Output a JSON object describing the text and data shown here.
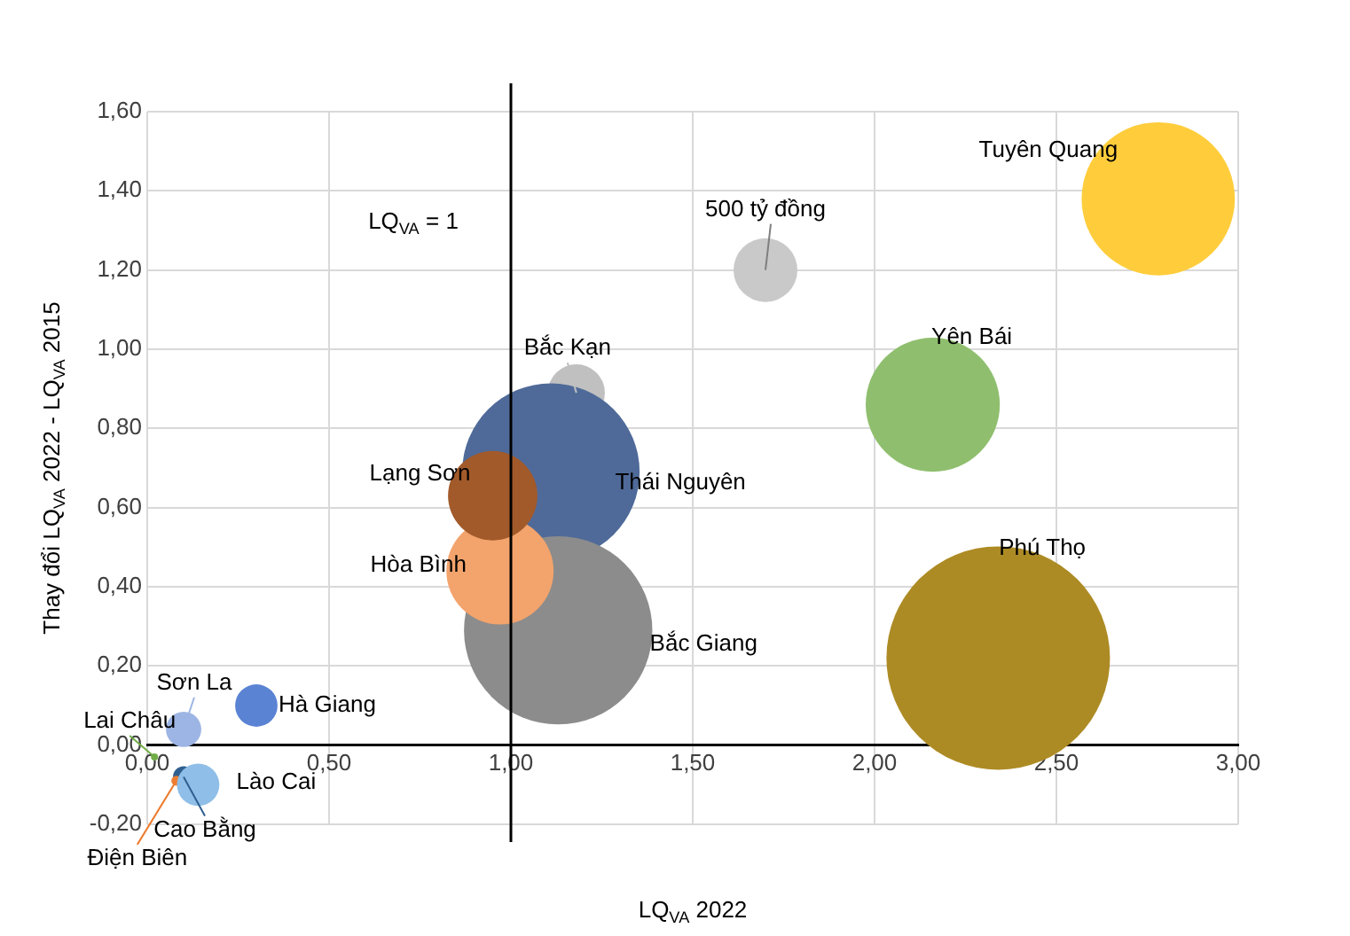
{
  "chart_data": {
    "type": "bubble",
    "xlabel": "LQ$_{VA}$ 2022",
    "ylabel": "Thay đổi LQ$_{VA}$ 2022 - LQ$_{VA}$ 2015",
    "xlim": [
      0,
      3
    ],
    "xticks": [
      {
        "value": 0,
        "label": "0,00"
      },
      {
        "value": 0.5,
        "label": "0,50"
      },
      {
        "value": 1,
        "label": "1,00"
      },
      {
        "value": 1.5,
        "label": "1,50"
      },
      {
        "value": 2,
        "label": "2,00"
      },
      {
        "value": 2.5,
        "label": "2,50"
      },
      {
        "value": 3,
        "label": "3,00"
      }
    ],
    "ylim": [
      -0.2,
      1.6
    ],
    "yticks": [
      {
        "value": -0.2,
        "label": "-0,20"
      },
      {
        "value": 0,
        "label": "0,00"
      },
      {
        "value": 0.2,
        "label": "0,20"
      },
      {
        "value": 0.4,
        "label": "0,40"
      },
      {
        "value": 0.6,
        "label": "0,60"
      },
      {
        "value": 0.8,
        "label": "0,80"
      },
      {
        "value": 1,
        "label": "1,00"
      },
      {
        "value": 1.2,
        "label": "1,20"
      },
      {
        "value": 1.4,
        "label": "1,40"
      },
      {
        "value": 1.6,
        "label": "1,60"
      }
    ],
    "grid": true,
    "legend": false,
    "ref_lines": [
      {
        "axis": "x",
        "value": 1,
        "label": "LQ$_{VA}$ = 1",
        "color": "#000000"
      }
    ],
    "annotations": [
      {
        "text": "500 tỷ đồng",
        "x": 1.7,
        "y": 1.2
      }
    ],
    "series": [
      {
        "name": "Tuyên Quang",
        "color": "#ffcd3c",
        "x": [
          2.78
        ],
        "values": [
          1.38
        ],
        "sizes": [
          0.47
        ]
      },
      {
        "name": "Yên Bái",
        "color": "#8fbf6e",
        "x": [
          2.16
        ],
        "values": [
          0.86
        ],
        "sizes": [
          0.36
        ]
      },
      {
        "name": "Bắc Kạn",
        "color": "#c0c0c0",
        "x": [
          1.18
        ],
        "values": [
          0.89
        ],
        "sizes": [
          0.065
        ]
      },
      {
        "name": "Thái Nguyên",
        "color": "#4f6a99",
        "x": [
          1.11
        ],
        "values": [
          0.69
        ],
        "sizes": [
          0.63
        ]
      },
      {
        "name": "Bắc Giang",
        "color": "#8c8c8c",
        "x": [
          1.13
        ],
        "values": [
          0.29
        ],
        "sizes": [
          0.71
        ]
      },
      {
        "name": "Hòa Bình",
        "color": "#f3a36c",
        "x": [
          0.97
        ],
        "values": [
          0.44
        ],
        "sizes": [
          0.23
        ]
      },
      {
        "name": "Lạng Sơn",
        "color": "#a25a2a",
        "x": [
          0.95
        ],
        "values": [
          0.63
        ],
        "sizes": [
          0.16
        ]
      },
      {
        "name": "Phú Thọ",
        "color": "#ad8b24",
        "x": [
          2.34
        ],
        "values": [
          0.22
        ],
        "sizes": [
          1
        ]
      },
      {
        "name": "Hà Giang",
        "color": "#5b83d4",
        "x": [
          0.3
        ],
        "values": [
          0.1
        ],
        "sizes": [
          0.036
        ]
      },
      {
        "name": "Sơn La",
        "color": "#9db5e4",
        "x": [
          0.1
        ],
        "values": [
          0.04
        ],
        "sizes": [
          0.025
        ]
      },
      {
        "name": "Lai Châu",
        "color": "#70ad47",
        "x": [
          0.02
        ],
        "values": [
          -0.03
        ],
        "sizes": [
          0.001
        ]
      },
      {
        "name": "Cao Bằng",
        "color": "#2f5f8f",
        "x": [
          0.1
        ],
        "values": [
          -0.08
        ],
        "sizes": [
          0.009
        ]
      },
      {
        "name": "Điện Biên",
        "color": "#ed7d31",
        "x": [
          0.08
        ],
        "values": [
          -0.09
        ],
        "sizes": [
          0.002
        ]
      },
      {
        "name": "Lào Cai",
        "color": "#8fbfe8",
        "x": [
          0.14
        ],
        "values": [
          -0.1
        ],
        "sizes": [
          0.036
        ]
      }
    ]
  }
}
